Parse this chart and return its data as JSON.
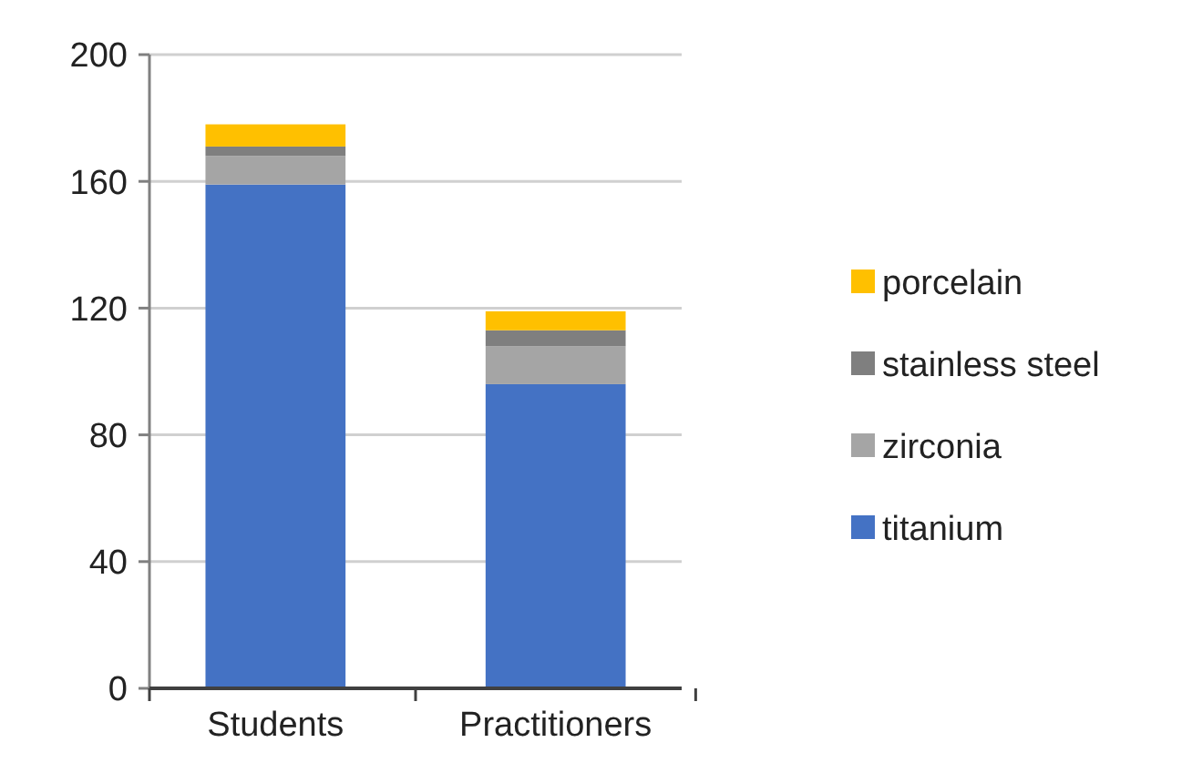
{
  "chart_data": {
    "type": "bar",
    "stacked": true,
    "categories": [
      "Students",
      "Practitioners"
    ],
    "series": [
      {
        "name": "titanium",
        "color": "#4472c4",
        "values": [
          159,
          96
        ]
      },
      {
        "name": "zirconia",
        "color": "#a5a5a5",
        "values": [
          9,
          12
        ]
      },
      {
        "name": "stainless steel",
        "color": "#7f7f7f",
        "values": [
          3,
          5
        ]
      },
      {
        "name": "porcelain",
        "color": "#ffc000",
        "values": [
          7,
          6
        ]
      }
    ],
    "ylim": [
      0,
      200
    ],
    "yticks": [
      0,
      40,
      80,
      120,
      160,
      200
    ],
    "grid": "y",
    "legend": "right"
  }
}
